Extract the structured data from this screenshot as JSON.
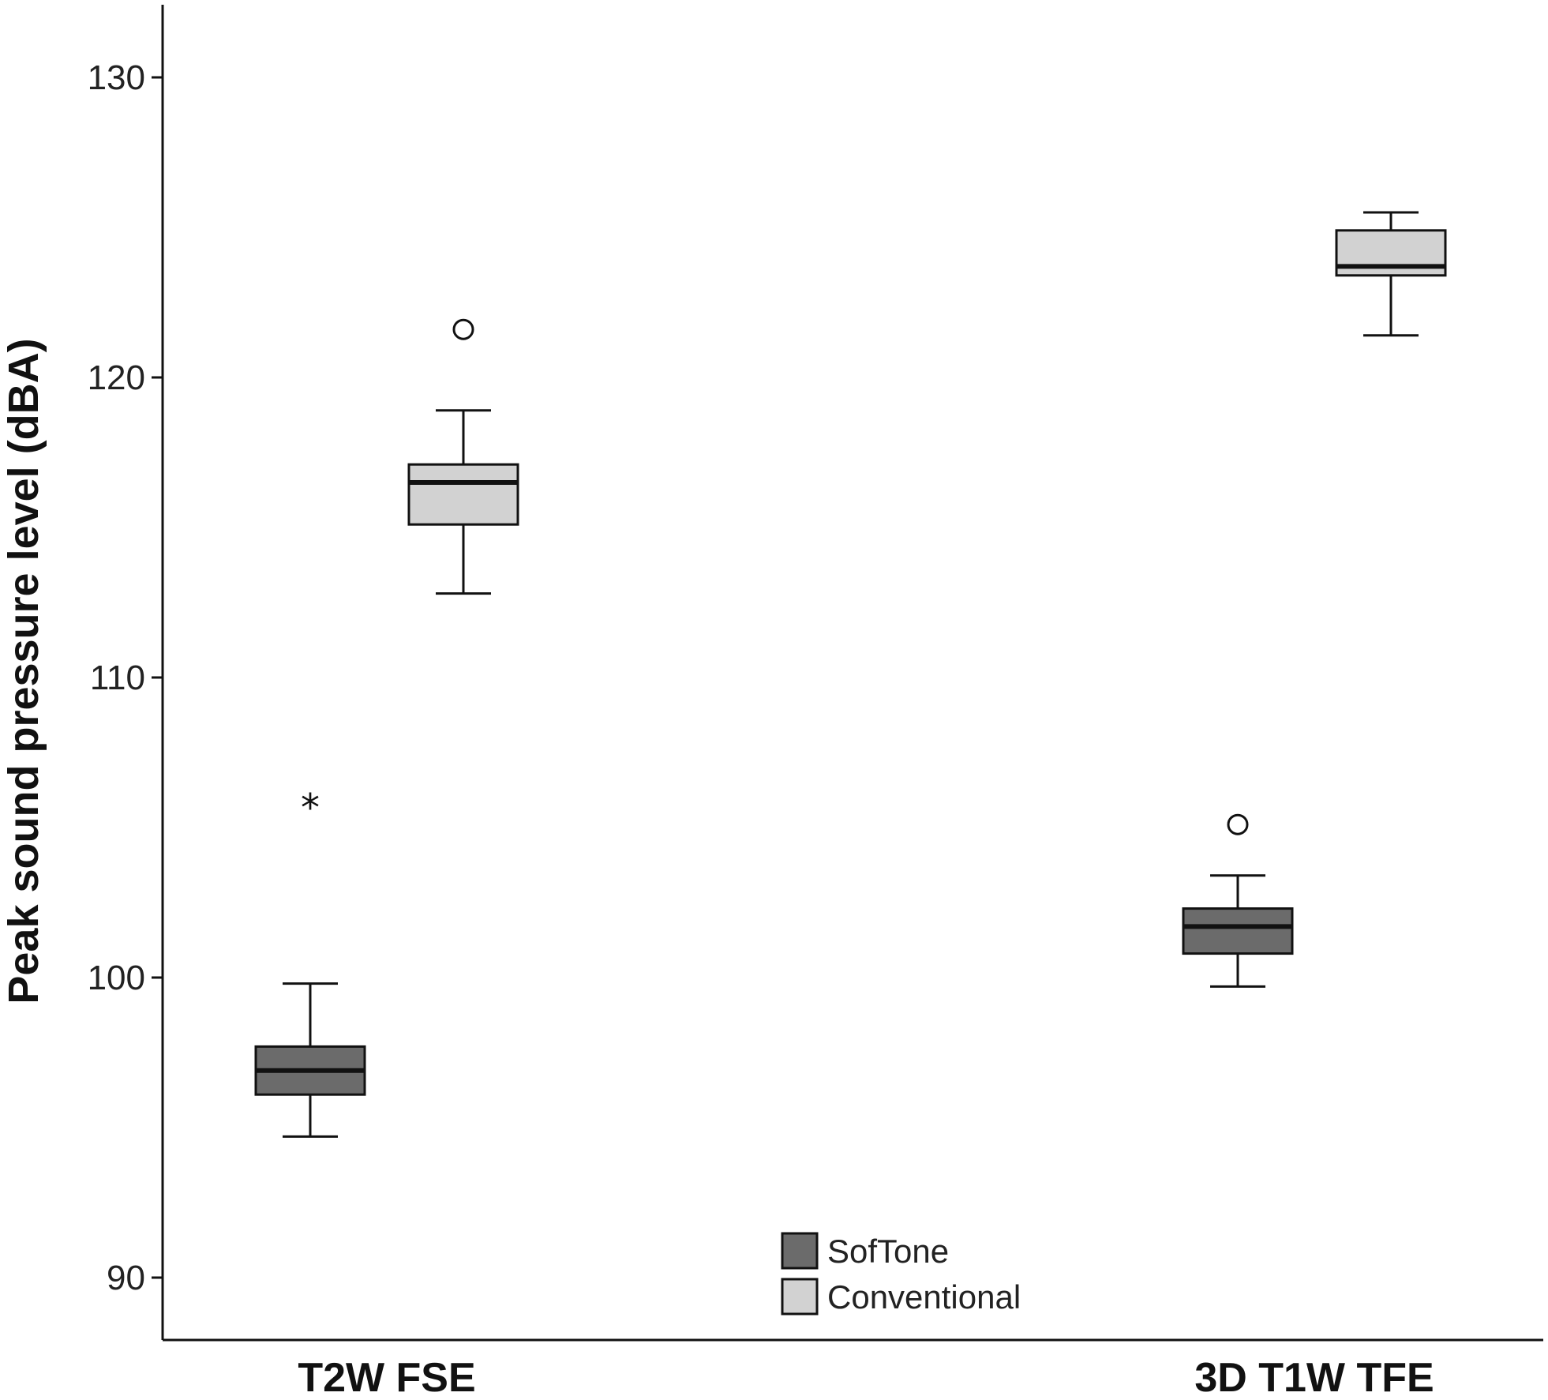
{
  "chart_data": {
    "type": "box",
    "ylabel": "Peak sound pressure level (dBA)",
    "ylim": [
      85.5,
      130
    ],
    "yticks": [
      90,
      100,
      110,
      120,
      130
    ],
    "categories": [
      "T2W FSE",
      "3D T1W TFE"
    ],
    "legend_position": "bottom-center",
    "series": [
      {
        "name": "SofTone",
        "color": "#6b6b6b",
        "boxes": [
          {
            "category": "T2W FSE",
            "whisker_low": 94.7,
            "q1": 96.1,
            "median": 96.9,
            "q3": 97.7,
            "whisker_high": 99.8,
            "outliers": [
              {
                "value": 105.8,
                "marker": "star"
              }
            ]
          },
          {
            "category": "3D T1W TFE",
            "whisker_low": 99.7,
            "q1": 100.8,
            "median": 101.7,
            "q3": 102.3,
            "whisker_high": 103.4,
            "outliers": [
              {
                "value": 105.1,
                "marker": "circle"
              }
            ]
          }
        ]
      },
      {
        "name": "Conventional",
        "color": "#d2d2d2",
        "boxes": [
          {
            "category": "T2W FSE",
            "whisker_low": 112.8,
            "q1": 115.1,
            "median": 116.5,
            "q3": 117.1,
            "whisker_high": 118.9,
            "outliers": [
              {
                "value": 121.6,
                "marker": "circle"
              }
            ]
          },
          {
            "category": "3D T1W TFE",
            "whisker_low": 121.4,
            "q1": 123.4,
            "median": 123.7,
            "q3": 124.9,
            "whisker_high": 125.5,
            "outliers": []
          }
        ]
      }
    ]
  }
}
